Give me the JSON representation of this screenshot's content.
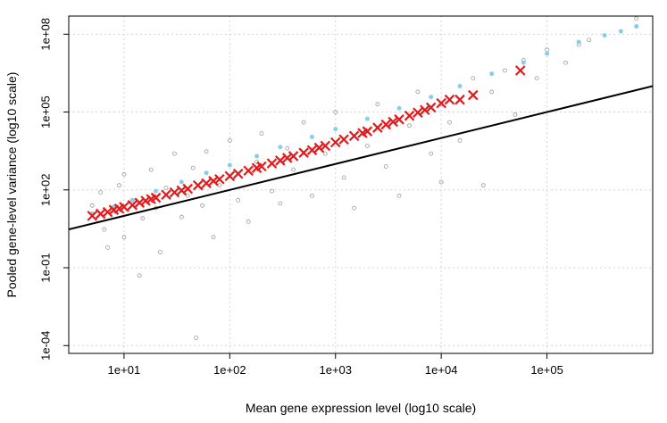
{
  "chart_data": {
    "type": "scatter",
    "title": "",
    "xlabel": "Mean gene expression level (log10 scale)",
    "ylabel": "Pooled gene-level variance (log10 scale)",
    "x_scale": "log10",
    "y_scale": "log10",
    "xlim": [
      3.0,
      1000000
    ],
    "ylim": [
      5e-05,
      500000000
    ],
    "grid": true,
    "legend": "none",
    "x_ticks": [
      {
        "value": 10,
        "label": "1e+01"
      },
      {
        "value": 100,
        "label": "1e+02"
      },
      {
        "value": 1000,
        "label": "1e+03"
      },
      {
        "value": 10000,
        "label": "1e+04"
      },
      {
        "value": 100000,
        "label": "1e+05"
      }
    ],
    "y_ticks": [
      {
        "value": 0.0001,
        "label": "1e-04"
      },
      {
        "value": 0.1,
        "label": "1e-01"
      },
      {
        "value": 100,
        "label": "1e+02"
      },
      {
        "value": 100000,
        "label": "1e+05"
      },
      {
        "value": 100000000,
        "label": "1e+08"
      }
    ],
    "series": [
      {
        "kind": "points",
        "color": "#999999",
        "marker": "open-circle",
        "points": [
          [
            5,
            25
          ],
          [
            6,
            80
          ],
          [
            6.5,
            3
          ],
          [
            7,
            0.6
          ],
          [
            8,
            15
          ],
          [
            9,
            150
          ],
          [
            10,
            1.5
          ],
          [
            10,
            400
          ],
          [
            12,
            40
          ],
          [
            14,
            0.05
          ],
          [
            15,
            8
          ],
          [
            18,
            600
          ],
          [
            20,
            20
          ],
          [
            22,
            0.4
          ],
          [
            25,
            120
          ],
          [
            30,
            2500
          ],
          [
            35,
            9
          ],
          [
            40,
            60
          ],
          [
            45,
            700
          ],
          [
            48,
            0.0002
          ],
          [
            55,
            25
          ],
          [
            60,
            3000
          ],
          [
            70,
            1.5
          ],
          [
            80,
            150
          ],
          [
            100,
            8000
          ],
          [
            120,
            40
          ],
          [
            150,
            6
          ],
          [
            180,
            1200
          ],
          [
            200,
            15000
          ],
          [
            250,
            90
          ],
          [
            300,
            30
          ],
          [
            350,
            4000
          ],
          [
            400,
            600
          ],
          [
            500,
            40000
          ],
          [
            600,
            60
          ],
          [
            800,
            2500
          ],
          [
            1000,
            100000
          ],
          [
            1200,
            300
          ],
          [
            1500,
            20
          ],
          [
            2000,
            5000
          ],
          [
            2500,
            200000
          ],
          [
            3000,
            800
          ],
          [
            4000,
            60
          ],
          [
            5000,
            30000
          ],
          [
            6000,
            600000
          ],
          [
            8000,
            2500
          ],
          [
            10000,
            200
          ],
          [
            10000,
            200000
          ],
          [
            12000,
            40000
          ],
          [
            15000,
            8000
          ],
          [
            20000,
            2000000
          ],
          [
            25000,
            150
          ],
          [
            30000,
            600000
          ],
          [
            40000,
            4000000
          ],
          [
            50000,
            80000
          ],
          [
            60000,
            10000000
          ],
          [
            80000,
            2000000
          ],
          [
            100000,
            25000000
          ],
          [
            150000,
            8000000
          ],
          [
            200000,
            40000000
          ],
          [
            250000,
            60000000
          ],
          [
            700000,
            200000000
          ],
          [
            700000,
            400000000
          ]
        ]
      },
      {
        "kind": "points",
        "color": "#87ceeb",
        "marker": "filled-circle",
        "points": [
          [
            5,
            12
          ],
          [
            8,
            22
          ],
          [
            12,
            40
          ],
          [
            20,
            90
          ],
          [
            35,
            200
          ],
          [
            60,
            450
          ],
          [
            100,
            900
          ],
          [
            180,
            2000
          ],
          [
            300,
            4500
          ],
          [
            600,
            11000
          ],
          [
            1000,
            22000
          ],
          [
            2000,
            55000
          ],
          [
            4000,
            140000
          ],
          [
            8000,
            380000
          ],
          [
            15000,
            1000000
          ],
          [
            30000,
            3000000
          ],
          [
            60000,
            8000000
          ],
          [
            100000,
            18000000
          ],
          [
            200000,
            50000000
          ],
          [
            350000,
            90000000
          ],
          [
            500000,
            130000000
          ],
          [
            700000,
            200000000
          ]
        ]
      },
      {
        "kind": "points",
        "color": "#e31a1c",
        "marker": "x",
        "points": [
          [
            5,
            10
          ],
          [
            6,
            12
          ],
          [
            7,
            14
          ],
          [
            8,
            17
          ],
          [
            9,
            19
          ],
          [
            10,
            22
          ],
          [
            12,
            26
          ],
          [
            14,
            32
          ],
          [
            16,
            38
          ],
          [
            18,
            44
          ],
          [
            20,
            50
          ],
          [
            25,
            65
          ],
          [
            30,
            80
          ],
          [
            35,
            95
          ],
          [
            40,
            110
          ],
          [
            50,
            150
          ],
          [
            60,
            180
          ],
          [
            70,
            220
          ],
          [
            80,
            260
          ],
          [
            100,
            340
          ],
          [
            120,
            420
          ],
          [
            150,
            550
          ],
          [
            180,
            700
          ],
          [
            200,
            800
          ],
          [
            250,
            1050
          ],
          [
            300,
            1350
          ],
          [
            350,
            1700
          ],
          [
            400,
            2000
          ],
          [
            500,
            2700
          ],
          [
            600,
            3400
          ],
          [
            700,
            4200
          ],
          [
            800,
            5000
          ],
          [
            1000,
            6800
          ],
          [
            1200,
            8800
          ],
          [
            1500,
            12000
          ],
          [
            1800,
            15500
          ],
          [
            2000,
            18000
          ],
          [
            2500,
            25000
          ],
          [
            3000,
            33000
          ],
          [
            3500,
            42000
          ],
          [
            4000,
            52000
          ],
          [
            5000,
            72000
          ],
          [
            6000,
            95000
          ],
          [
            7000,
            120000
          ],
          [
            8000,
            150000
          ],
          [
            10000,
            220000
          ],
          [
            12000,
            300000
          ],
          [
            15000,
            300000
          ],
          [
            20000,
            450000
          ],
          [
            56000,
            4000000
          ]
        ]
      },
      {
        "kind": "line",
        "color": "#000000",
        "points": [
          [
            3,
            3
          ],
          [
            1000000,
            1000000
          ]
        ]
      }
    ]
  }
}
